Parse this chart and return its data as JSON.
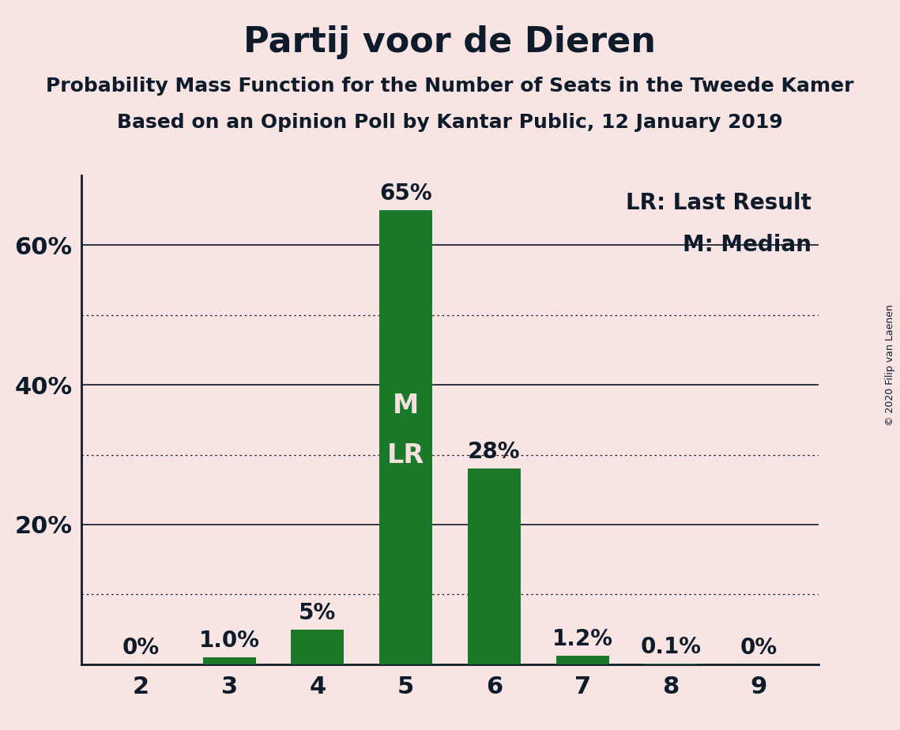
{
  "title": "Partij voor de Dieren",
  "subtitle1": "Probability Mass Function for the Number of Seats in the Tweede Kamer",
  "subtitle2": "Based on an Opinion Poll by Kantar Public, 12 January 2019",
  "copyright": "© 2020 Filip van Laenen",
  "categories": [
    2,
    3,
    4,
    5,
    6,
    7,
    8,
    9
  ],
  "values": [
    0.0,
    1.0,
    5.0,
    65.0,
    28.0,
    1.2,
    0.1,
    0.0
  ],
  "labels": [
    "0%",
    "1.0%",
    "5%",
    "65%",
    "28%",
    "1.2%",
    "0.1%",
    "0%"
  ],
  "bar_color": "#1a7a2a",
  "background_color": "#f9e4e4",
  "text_color": "#0d1b2a",
  "bar_label_color_outside": "#0d1b2a",
  "bar_label_color_inside": "#f5e0e0",
  "median_label": "M",
  "lr_label": "LR",
  "legend_lr": "LR: Last Result",
  "legend_m": "M: Median",
  "ylim_max": 70,
  "ytick_values": [
    20,
    40,
    60
  ],
  "ytick_labels": [
    "20%",
    "40%",
    "60%"
  ],
  "solid_grid": [
    20,
    40,
    60
  ],
  "dotted_grid": [
    10,
    30,
    50
  ],
  "title_fontsize": 32,
  "subtitle_fontsize": 18,
  "tick_fontsize": 22,
  "legend_fontsize": 20,
  "bar_label_fontsize": 20,
  "ml_label_fontsize": 24,
  "bar_width": 0.6
}
